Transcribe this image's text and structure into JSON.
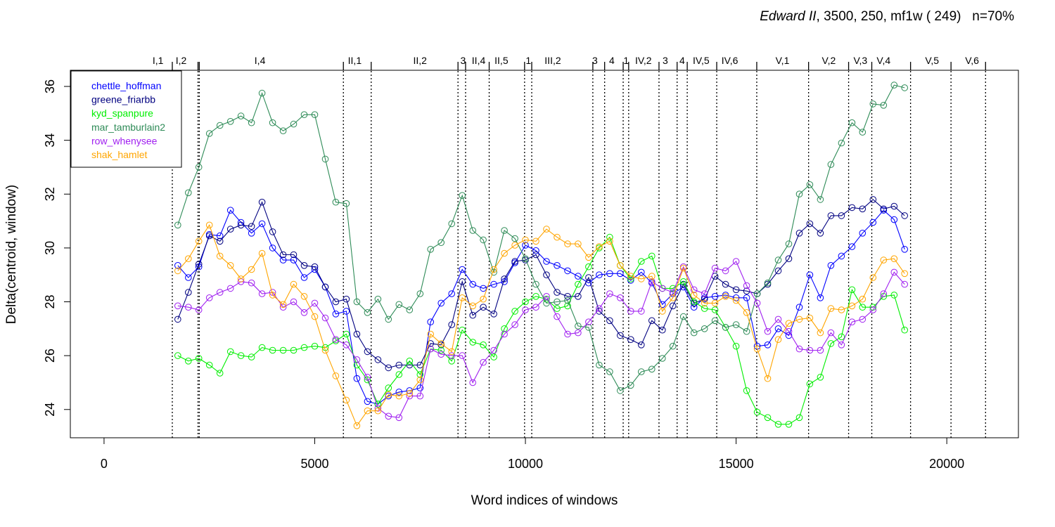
{
  "chart_data": {
    "type": "line",
    "title_italic": "Edward II",
    "title_rest": ", 3500, 250, mf1w ( 249)   n=70%",
    "xlabel": "Word indices of windows",
    "ylabel": "Delta(centroid, window)",
    "xlim": [
      -800,
      21700
    ],
    "ylim": [
      22.95,
      36.6
    ],
    "x_ticks": [
      0,
      5000,
      10000,
      15000,
      20000
    ],
    "x_tick_labels": [
      "0",
      "5000",
      "10000",
      "15000",
      "20000"
    ],
    "y_ticks": [
      24,
      26,
      28,
      30,
      32,
      34,
      36
    ],
    "y_tick_labels": [
      "24",
      "26",
      "28",
      "30",
      "32",
      "34",
      "36"
    ],
    "legend_position": "top-left",
    "grid": false,
    "scene_markers": [
      {
        "x": 1620,
        "label": ""
      },
      {
        "x": 2230,
        "label": ""
      },
      {
        "x": 2260,
        "label": ""
      },
      {
        "x": 5680,
        "label": ""
      },
      {
        "x": 6340,
        "label": ""
      },
      {
        "x": 8400,
        "label": ""
      },
      {
        "x": 8580,
        "label": ""
      },
      {
        "x": 9140,
        "label": ""
      },
      {
        "x": 9980,
        "label": ""
      },
      {
        "x": 10150,
        "label": ""
      },
      {
        "x": 11600,
        "label": ""
      },
      {
        "x": 11880,
        "label": ""
      },
      {
        "x": 12320,
        "label": ""
      },
      {
        "x": 12450,
        "label": ""
      },
      {
        "x": 13170,
        "label": ""
      },
      {
        "x": 13600,
        "label": ""
      },
      {
        "x": 13840,
        "label": ""
      },
      {
        "x": 14540,
        "label": ""
      },
      {
        "x": 15490,
        "label": ""
      },
      {
        "x": 16720,
        "label": ""
      },
      {
        "x": 17670,
        "label": ""
      },
      {
        "x": 18220,
        "label": ""
      },
      {
        "x": 19140,
        "label": ""
      },
      {
        "x": 20100,
        "label": ""
      },
      {
        "x": 20920,
        "label": ""
      }
    ],
    "scene_labels": [
      {
        "x": 1280,
        "text": "I,1"
      },
      {
        "x": 1830,
        "text": "I,2"
      },
      {
        "x": 3700,
        "text": "I,4"
      },
      {
        "x": 5950,
        "text": "II,1"
      },
      {
        "x": 7500,
        "text": "II,2"
      },
      {
        "x": 8520,
        "text": "3"
      },
      {
        "x": 8890,
        "text": "II,4"
      },
      {
        "x": 9430,
        "text": "II,5"
      },
      {
        "x": 10070,
        "text": "1"
      },
      {
        "x": 10650,
        "text": "III,2"
      },
      {
        "x": 11650,
        "text": "3"
      },
      {
        "x": 12050,
        "text": "4"
      },
      {
        "x": 12390,
        "text": "1"
      },
      {
        "x": 12800,
        "text": "IV,2"
      },
      {
        "x": 13320,
        "text": "3"
      },
      {
        "x": 13720,
        "text": "4"
      },
      {
        "x": 14170,
        "text": "IV,5"
      },
      {
        "x": 14850,
        "text": "IV,6"
      },
      {
        "x": 16100,
        "text": "V,1"
      },
      {
        "x": 17200,
        "text": "V,2"
      },
      {
        "x": 17950,
        "text": "V,3"
      },
      {
        "x": 18500,
        "text": "V,4"
      },
      {
        "x": 19650,
        "text": "V,5"
      },
      {
        "x": 20600,
        "text": "V,6"
      }
    ],
    "x": [
      1750,
      2000,
      2250,
      2500,
      2750,
      3000,
      3250,
      3500,
      3750,
      4000,
      4250,
      4500,
      4750,
      5000,
      5250,
      5500,
      5750,
      6000,
      6250,
      6500,
      6750,
      7000,
      7250,
      7500,
      7750,
      8000,
      8250,
      8500,
      8750,
      9000,
      9250,
      9500,
      9750,
      10000,
      10250,
      10500,
      10750,
      11000,
      11250,
      11500,
      11750,
      12000,
      12250,
      12500,
      12750,
      13000,
      13250,
      13500,
      13750,
      14000,
      14250,
      14500,
      14750,
      15000,
      15250,
      15500,
      15750,
      16000,
      16250,
      16500,
      16750,
      17000,
      17250,
      17500,
      17750,
      18000,
      18250,
      18500,
      18750,
      19000
    ],
    "series": [
      {
        "name": "chettle_hoffman",
        "color": "#0000ff",
        "values": [
          29.35,
          28.9,
          29.3,
          30.5,
          30.45,
          31.4,
          30.95,
          30.55,
          30.9,
          30.0,
          29.55,
          29.55,
          28.9,
          29.2,
          28.55,
          27.55,
          27.65,
          25.15,
          24.3,
          24.2,
          24.5,
          24.65,
          24.7,
          24.8,
          27.25,
          27.95,
          28.3,
          29.2,
          28.65,
          28.5,
          28.65,
          28.75,
          29.45,
          30.1,
          29.9,
          29.5,
          29.35,
          29.15,
          28.95,
          28.7,
          29.0,
          29.05,
          29.05,
          28.8,
          29.1,
          28.7,
          27.9,
          28.3,
          28.55,
          27.8,
          28.15,
          28.2,
          28.25,
          28.15,
          28.15,
          26.35,
          26.4,
          27.0,
          26.75,
          27.8,
          29.0,
          28.15,
          29.35,
          29.7,
          30.05,
          30.55,
          30.95,
          31.4,
          31.05,
          29.95
        ]
      },
      {
        "name": "greene_friarbb",
        "color": "#000080",
        "values": [
          27.35,
          28.35,
          29.4,
          30.45,
          30.25,
          30.7,
          30.85,
          30.8,
          31.7,
          30.6,
          29.75,
          29.75,
          29.35,
          29.3,
          28.55,
          28.0,
          28.1,
          26.8,
          26.15,
          25.85,
          25.55,
          25.65,
          25.65,
          25.65,
          26.45,
          26.4,
          27.15,
          28.75,
          27.5,
          27.8,
          27.55,
          28.85,
          29.5,
          29.55,
          29.75,
          29.0,
          28.35,
          28.2,
          28.2,
          28.9,
          27.65,
          27.3,
          26.75,
          26.6,
          26.4,
          27.3,
          26.95,
          27.85,
          28.65,
          27.95,
          28.1,
          28.95,
          28.65,
          28.45,
          28.4,
          28.3,
          28.65,
          29.15,
          29.6,
          30.55,
          30.9,
          30.55,
          31.2,
          31.2,
          31.5,
          31.45,
          31.8,
          31.45,
          31.55,
          31.2
        ]
      },
      {
        "name": "kyd_spanpure",
        "color": "#00ee00",
        "values": [
          26.0,
          25.8,
          25.9,
          25.65,
          25.35,
          26.15,
          26.0,
          25.95,
          26.3,
          26.2,
          26.2,
          26.2,
          26.3,
          26.35,
          26.3,
          26.55,
          26.8,
          25.65,
          25.1,
          24.2,
          24.8,
          25.3,
          25.8,
          25.3,
          26.25,
          26.2,
          25.8,
          26.95,
          26.5,
          26.4,
          25.95,
          27.0,
          27.65,
          28.0,
          28.2,
          28.1,
          27.75,
          27.85,
          28.65,
          29.3,
          30.0,
          30.4,
          29.35,
          28.85,
          29.5,
          29.7,
          28.5,
          28.5,
          28.75,
          28.0,
          27.75,
          27.7,
          27.05,
          26.35,
          24.7,
          23.9,
          23.7,
          23.45,
          23.45,
          23.7,
          24.95,
          25.2,
          26.45,
          26.7,
          28.45,
          27.8,
          27.8,
          28.2,
          28.25,
          26.95
        ]
      },
      {
        "name": "mar_tamburlain2",
        "color": "#2e8b57",
        "values": [
          30.85,
          32.05,
          33.0,
          34.25,
          34.55,
          34.7,
          34.9,
          34.65,
          35.75,
          34.65,
          34.35,
          34.6,
          34.95,
          34.95,
          33.3,
          31.7,
          31.65,
          28.0,
          27.6,
          28.1,
          27.35,
          27.9,
          27.7,
          28.3,
          29.95,
          30.2,
          30.9,
          31.95,
          30.65,
          30.3,
          29.1,
          30.65,
          30.35,
          29.6,
          28.65,
          27.95,
          28.0,
          28.05,
          27.1,
          27.05,
          25.65,
          25.4,
          24.7,
          24.9,
          25.4,
          25.5,
          25.9,
          26.35,
          27.45,
          26.85,
          27.0,
          27.3,
          27.05,
          27.15,
          26.9,
          28.3,
          28.7,
          29.55,
          30.15,
          32.0,
          32.35,
          31.8,
          33.1,
          33.9,
          34.65,
          34.3,
          35.35,
          35.3,
          36.05,
          35.95
        ]
      },
      {
        "name": "row_whenysee",
        "color": "#a020f0",
        "values": [
          27.85,
          27.8,
          27.7,
          28.15,
          28.35,
          28.5,
          28.75,
          28.7,
          28.3,
          28.35,
          27.8,
          28.0,
          27.6,
          27.95,
          27.4,
          26.6,
          26.4,
          25.85,
          25.2,
          24.05,
          23.75,
          23.7,
          24.5,
          24.5,
          26.25,
          26.05,
          26.0,
          26.0,
          25.0,
          25.75,
          26.2,
          26.8,
          27.15,
          27.7,
          27.8,
          28.2,
          27.45,
          26.8,
          26.85,
          27.25,
          27.75,
          28.3,
          28.15,
          27.65,
          27.65,
          28.75,
          28.5,
          28.35,
          29.3,
          28.45,
          28.3,
          29.25,
          29.15,
          29.5,
          28.6,
          27.95,
          26.9,
          27.35,
          26.9,
          26.25,
          26.2,
          26.2,
          26.85,
          26.4,
          27.25,
          27.35,
          27.7,
          28.3,
          29.1,
          28.65
        ]
      },
      {
        "name": "shak_hamlet",
        "color": "#ffa500",
        "values": [
          29.15,
          29.6,
          30.25,
          30.85,
          29.7,
          29.35,
          28.85,
          29.2,
          29.8,
          28.25,
          27.9,
          28.65,
          28.2,
          27.45,
          26.2,
          25.25,
          24.35,
          23.4,
          23.95,
          23.95,
          24.55,
          24.5,
          24.6,
          25.1,
          26.8,
          26.45,
          26.15,
          28.15,
          27.85,
          28.1,
          29.2,
          29.8,
          30.1,
          30.3,
          30.25,
          30.7,
          30.4,
          30.15,
          30.15,
          29.65,
          30.05,
          30.25,
          29.35,
          28.95,
          28.85,
          28.95,
          27.65,
          28.15,
          29.25,
          28.25,
          27.95,
          27.95,
          28.2,
          28.05,
          27.6,
          26.25,
          25.15,
          26.6,
          27.2,
          27.35,
          27.4,
          26.85,
          27.75,
          27.7,
          27.85,
          28.1,
          28.9,
          29.55,
          29.6,
          29.05
        ]
      }
    ]
  }
}
